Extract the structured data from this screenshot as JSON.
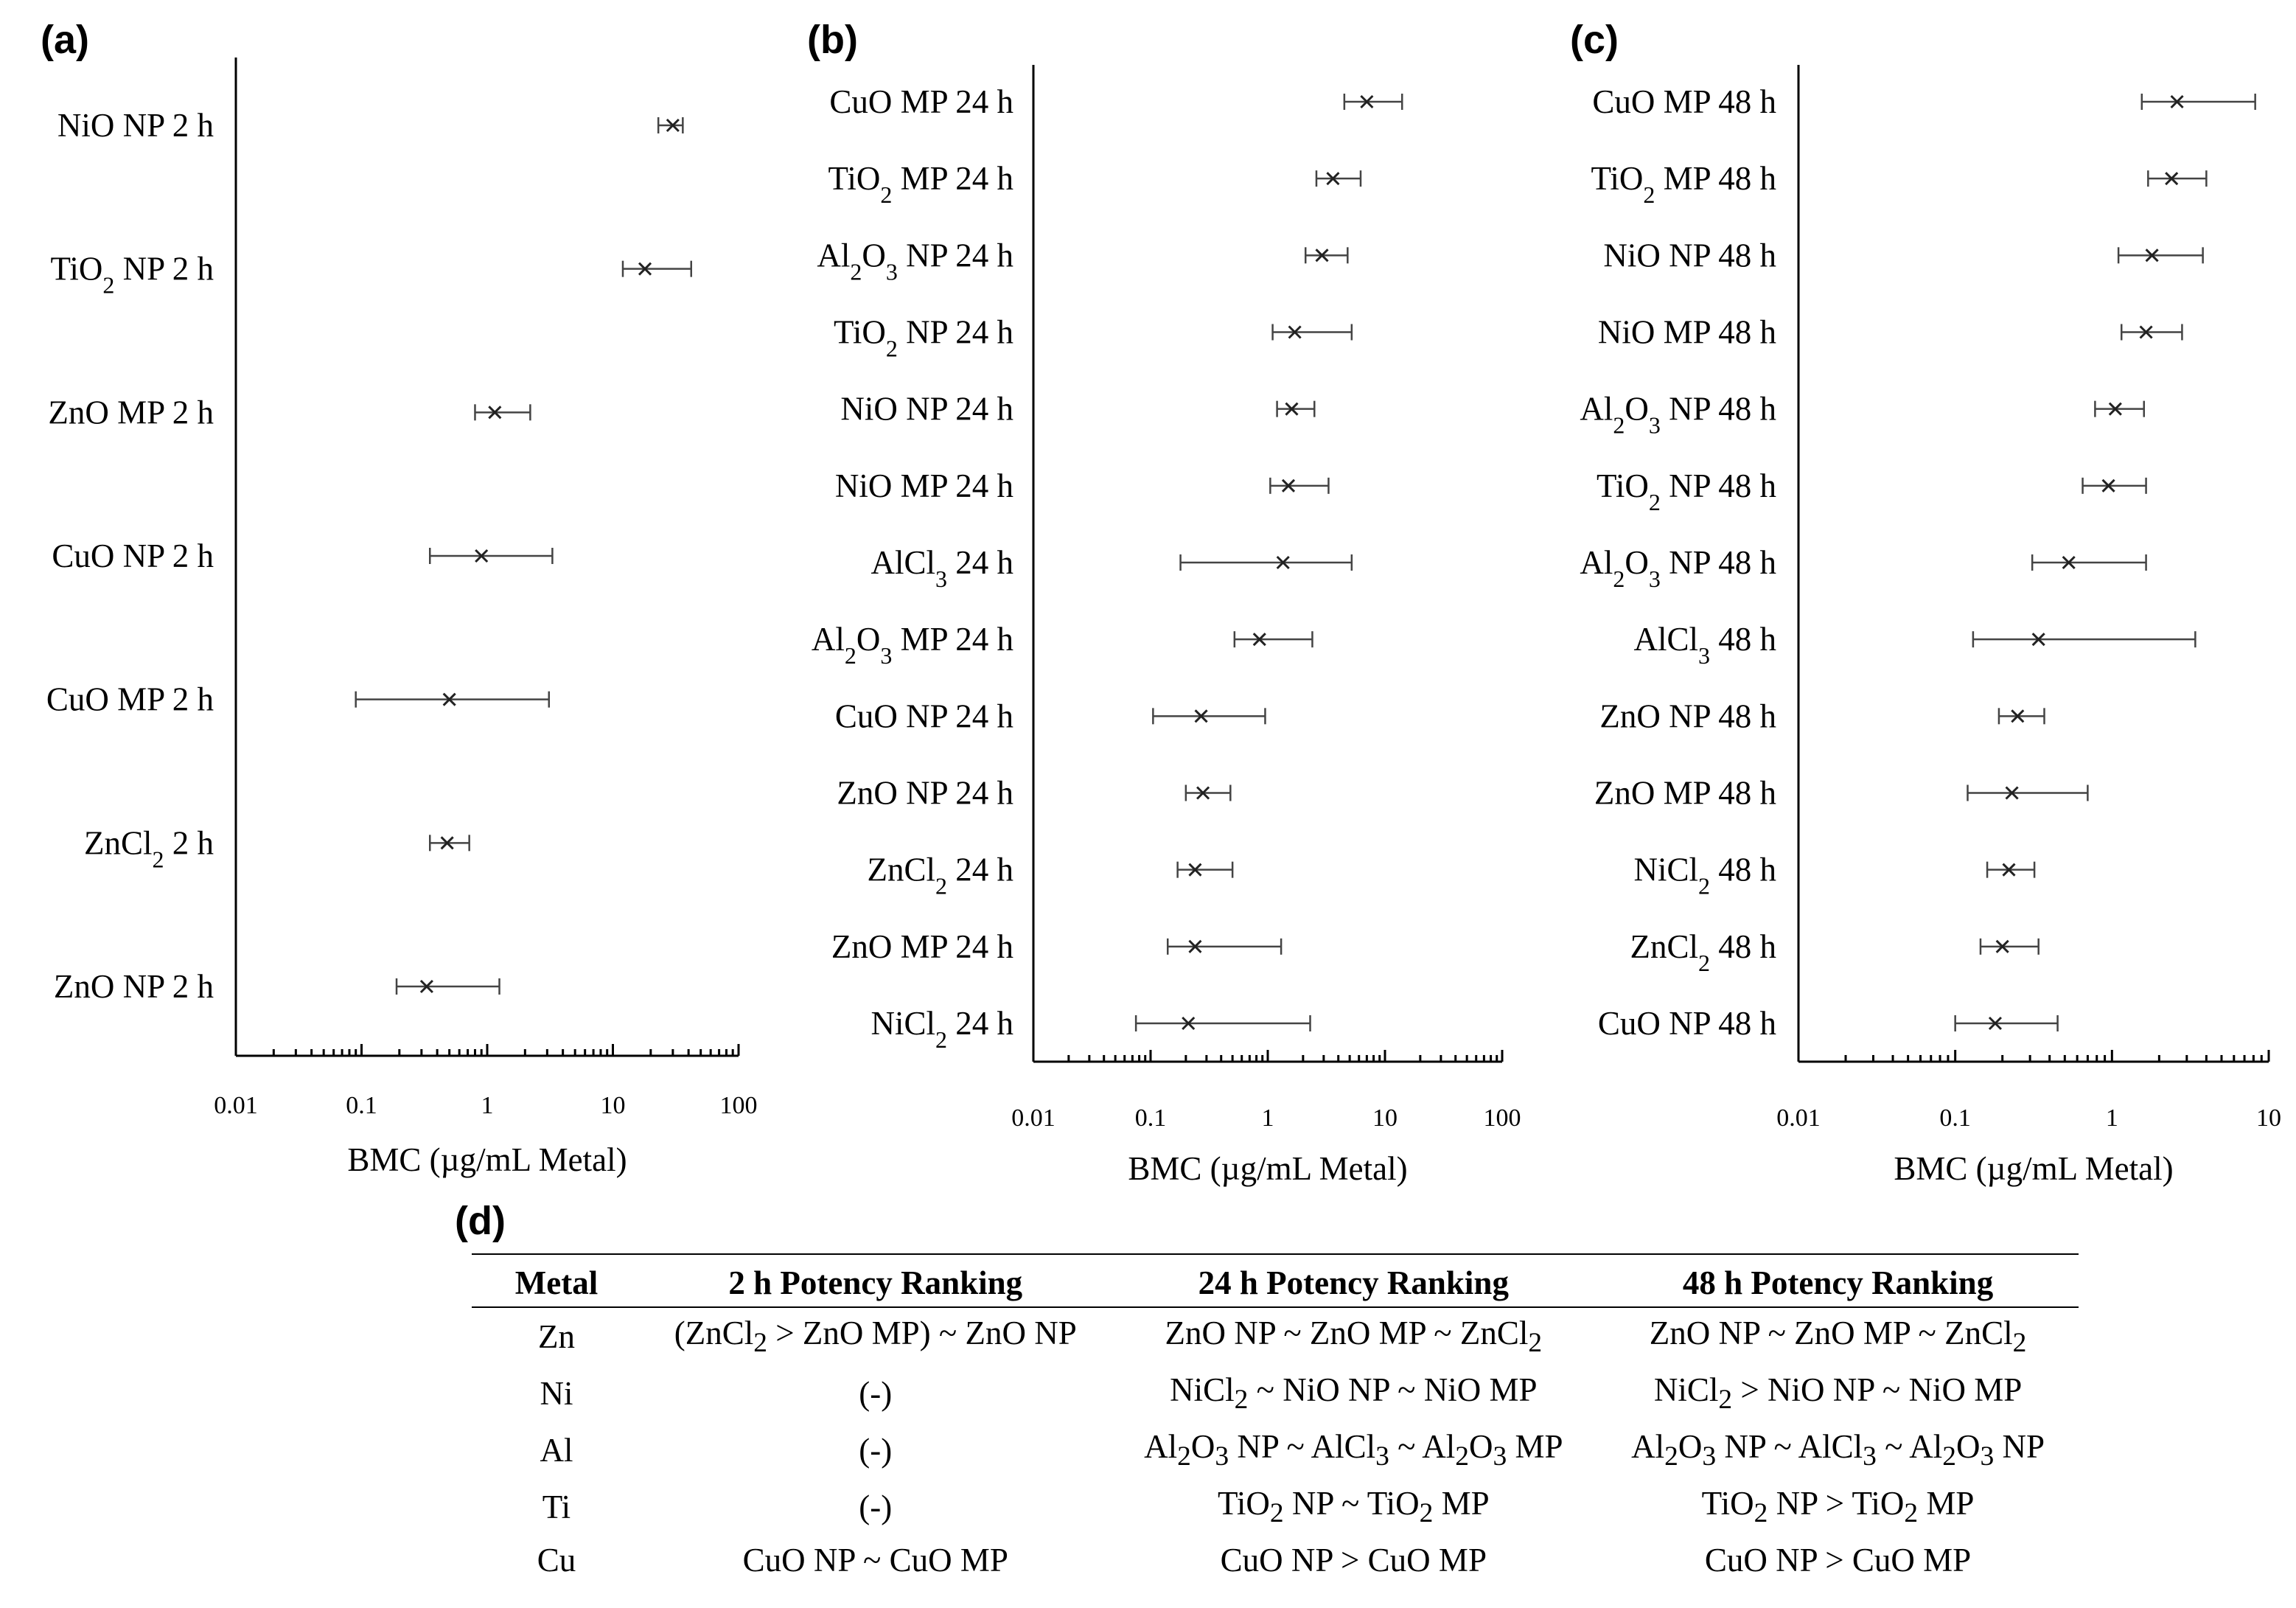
{
  "chart_data": [
    {
      "type": "scatter",
      "panel": "(a)",
      "xscale": "log",
      "xlim": [
        0.01,
        100
      ],
      "xticks": [
        "0.01",
        "0.1",
        "1",
        "10",
        "100"
      ],
      "xlabel": "BMC (µg/mL Metal)",
      "series": [
        {
          "label": "NiO NP 2 h",
          "html": "NiO NP 2 h",
          "bmc": 30,
          "lo": 23,
          "hi": 36
        },
        {
          "label": "TiO2 NP 2 h",
          "html": "TiO<tspan class='sub' baseline-shift='sub' font-size='32'>2</tspan> NP 2 h",
          "bmc": 18,
          "lo": 12,
          "hi": 42
        },
        {
          "label": "ZnO MP 2 h",
          "html": "ZnO MP 2 h",
          "bmc": 1.15,
          "lo": 0.8,
          "hi": 2.2
        },
        {
          "label": "CuO NP 2 h",
          "html": "CuO NP 2 h",
          "bmc": 0.9,
          "lo": 0.35,
          "hi": 3.3
        },
        {
          "label": "CuO MP 2 h",
          "html": "CuO MP 2 h",
          "bmc": 0.5,
          "lo": 0.09,
          "hi": 3.1
        },
        {
          "label": "ZnCl2 2 h",
          "html": "ZnCl<tspan baseline-shift='sub' font-size='32'>2</tspan> 2 h",
          "bmc": 0.48,
          "lo": 0.35,
          "hi": 0.72
        },
        {
          "label": "ZnO NP 2 h",
          "html": "ZnO NP 2 h",
          "bmc": 0.33,
          "lo": 0.19,
          "hi": 1.25
        }
      ]
    },
    {
      "type": "scatter",
      "panel": "(b)",
      "xscale": "log",
      "xlim": [
        0.01,
        100
      ],
      "xticks": [
        "0.01",
        "0.1",
        "1",
        "10",
        "100"
      ],
      "xlabel": "BMC (µg/mL Metal)",
      "series": [
        {
          "label": "CuO MP 24 h",
          "html": "CuO MP 24 h",
          "bmc": 7,
          "lo": 4.5,
          "hi": 14
        },
        {
          "label": "TiO2 MP 24 h",
          "html": "TiO<tspan baseline-shift='sub' font-size='32'>2</tspan> MP 24 h",
          "bmc": 3.6,
          "lo": 2.6,
          "hi": 6.2
        },
        {
          "label": "Al2O3 NP 24 h",
          "html": "Al<tspan baseline-shift='sub' font-size='32'>2</tspan>O<tspan baseline-shift='sub' font-size='32'>3</tspan> NP 24 h",
          "bmc": 2.9,
          "lo": 2.1,
          "hi": 4.8
        },
        {
          "label": "TiO2 NP 24 h",
          "html": "TiO<tspan baseline-shift='sub' font-size='32'>2</tspan> NP 24 h",
          "bmc": 1.7,
          "lo": 1.1,
          "hi": 5.2
        },
        {
          "label": "NiO NP 24 h",
          "html": "NiO NP 24 h",
          "bmc": 1.6,
          "lo": 1.2,
          "hi": 2.5
        },
        {
          "label": "NiO MP 24 h",
          "html": "NiO MP 24 h",
          "bmc": 1.5,
          "lo": 1.05,
          "hi": 3.3
        },
        {
          "label": "AlCl3 24 h",
          "html": "AlCl<tspan baseline-shift='sub' font-size='32'>3</tspan> 24 h",
          "bmc": 1.35,
          "lo": 0.18,
          "hi": 5.2
        },
        {
          "label": "Al2O3 MP 24 h",
          "html": "Al<tspan baseline-shift='sub' font-size='32'>2</tspan>O<tspan baseline-shift='sub' font-size='32'>3</tspan> MP 24 h",
          "bmc": 0.85,
          "lo": 0.52,
          "hi": 2.4
        },
        {
          "label": "CuO NP 24 h",
          "html": "CuO NP 24 h",
          "bmc": 0.27,
          "lo": 0.105,
          "hi": 0.95
        },
        {
          "label": "ZnO NP 24 h",
          "html": "ZnO NP 24 h",
          "bmc": 0.28,
          "lo": 0.2,
          "hi": 0.48
        },
        {
          "label": "ZnCl2 24 h",
          "html": "ZnCl<tspan baseline-shift='sub' font-size='32'>2</tspan> 24 h",
          "bmc": 0.24,
          "lo": 0.17,
          "hi": 0.5
        },
        {
          "label": "ZnO MP 24 h",
          "html": "ZnO MP 24 h",
          "bmc": 0.24,
          "lo": 0.14,
          "hi": 1.3
        },
        {
          "label": "NiCl2 24 h",
          "html": "NiCl<tspan baseline-shift='sub' font-size='32'>2</tspan> 24 h",
          "bmc": 0.21,
          "lo": 0.075,
          "hi": 2.3
        }
      ]
    },
    {
      "type": "scatter",
      "panel": "(c)",
      "xscale": "log",
      "xlim": [
        0.01,
        10
      ],
      "xticks": [
        "0.01",
        "0.1",
        "1",
        "10"
      ],
      "xlabel": "BMC (µg/mL Metal)",
      "series": [
        {
          "label": "CuO MP 48 h",
          "html": "CuO MP 48 h",
          "bmc": 2.6,
          "lo": 1.55,
          "hi": 8.2
        },
        {
          "label": "TiO2 MP 48 h",
          "html": "TiO<tspan baseline-shift='sub' font-size='32'>2</tspan> MP 48 h",
          "bmc": 2.4,
          "lo": 1.7,
          "hi": 4.0
        },
        {
          "label": "NiO NP 48 h",
          "html": "NiO NP 48 h",
          "bmc": 1.8,
          "lo": 1.1,
          "hi": 3.8
        },
        {
          "label": "NiO MP 48 h",
          "html": "NiO MP 48 h",
          "bmc": 1.65,
          "lo": 1.15,
          "hi": 2.8
        },
        {
          "label": "Al2O3 NP 48 h",
          "html": "Al<tspan baseline-shift='sub' font-size='32'>2</tspan>O<tspan baseline-shift='sub' font-size='32'>3</tspan> NP 48 h",
          "bmc": 1.05,
          "lo": 0.78,
          "hi": 1.6
        },
        {
          "label": "TiO2 NP 48 h",
          "html": "TiO<tspan baseline-shift='sub' font-size='32'>2</tspan> NP 48 h",
          "bmc": 0.95,
          "lo": 0.65,
          "hi": 1.65
        },
        {
          "label": "Al2O3 NP 48 h",
          "html": "Al<tspan baseline-shift='sub' font-size='32'>2</tspan>O<tspan baseline-shift='sub' font-size='32'>3</tspan> NP 48 h",
          "bmc": 0.53,
          "lo": 0.31,
          "hi": 1.65
        },
        {
          "label": "AlCl3 48 h",
          "html": "AlCl<tspan baseline-shift='sub' font-size='32'>3</tspan> 48 h",
          "bmc": 0.34,
          "lo": 0.13,
          "hi": 3.4
        },
        {
          "label": "ZnO NP 48 h",
          "html": "ZnO NP 48 h",
          "bmc": 0.25,
          "lo": 0.19,
          "hi": 0.37
        },
        {
          "label": "ZnO MP 48 h",
          "html": "ZnO MP 48 h",
          "bmc": 0.23,
          "lo": 0.12,
          "hi": 0.7
        },
        {
          "label": "NiCl2 48 h",
          "html": "NiCl<tspan baseline-shift='sub' font-size='32'>2</tspan> 48 h",
          "bmc": 0.22,
          "lo": 0.16,
          "hi": 0.32
        },
        {
          "label": "ZnCl2 48 h",
          "html": "ZnCl<tspan baseline-shift='sub' font-size='32'>2</tspan> 48 h",
          "bmc": 0.2,
          "lo": 0.145,
          "hi": 0.34
        },
        {
          "label": "CuO NP 48 h",
          "html": "CuO NP 48 h",
          "bmc": 0.18,
          "lo": 0.1,
          "hi": 0.45
        }
      ]
    }
  ],
  "table": {
    "panel": "(d)",
    "headers": [
      "Metal",
      "2 h Potency Ranking",
      "24 h Potency Ranking",
      "48 h Potency Ranking"
    ],
    "rows": [
      {
        "metal": "Zn",
        "r2": "(ZnCl<sub>2</sub> &gt; ZnO MP) ~ ZnO NP",
        "r24": "ZnO NP ~ ZnO MP ~ ZnCl<sub>2</sub>",
        "r48": "ZnO NP ~ ZnO MP ~ ZnCl<sub>2</sub>"
      },
      {
        "metal": "Ni",
        "r2": "(-)",
        "r24": "NiCl<sub>2</sub> ~ NiO NP ~ NiO MP",
        "r48": "NiCl<sub>2</sub> &gt; NiO NP ~ NiO MP"
      },
      {
        "metal": "Al",
        "r2": "(-)",
        "r24": "Al<sub>2</sub>O<sub>3</sub> NP ~ AlCl<sub>3</sub> ~ Al<sub>2</sub>O<sub>3</sub> MP",
        "r48": "Al<sub>2</sub>O<sub>3</sub> NP ~ AlCl<sub>3</sub> ~ Al<sub>2</sub>O<sub>3</sub> NP"
      },
      {
        "metal": "Ti",
        "r2": "(-)",
        "r24": "TiO<sub>2</sub> NP ~ TiO<sub>2</sub> MP",
        "r48": "TiO<sub>2</sub> NP &gt; TiO<sub>2</sub> MP"
      },
      {
        "metal": "Cu",
        "r2": "CuO NP ~ CuO MP",
        "r24": "CuO NP &gt; CuO MP",
        "r48": "CuO NP &gt; CuO MP"
      }
    ]
  }
}
